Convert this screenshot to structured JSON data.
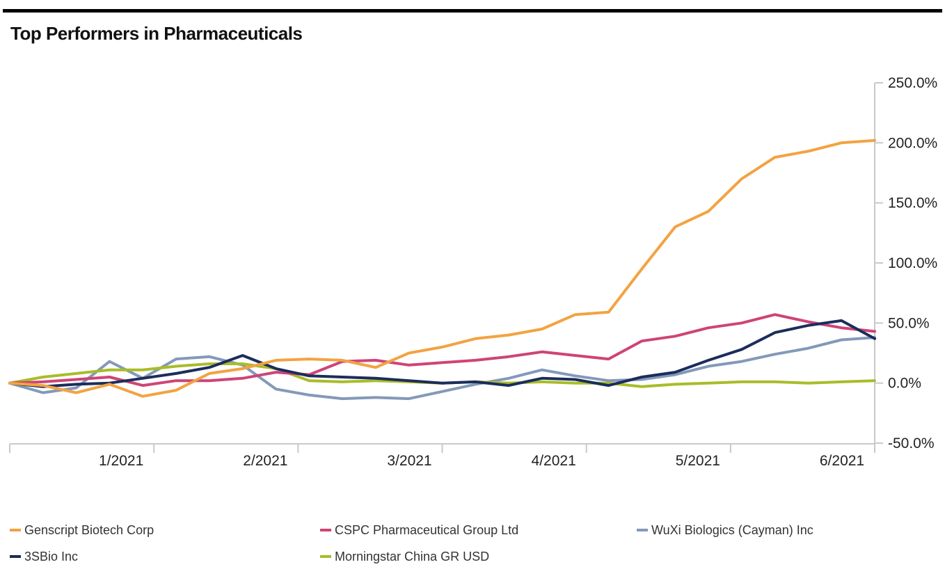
{
  "chart_data": {
    "type": "line",
    "title": "Top Performers in Pharmaceuticals",
    "x_tick_labels": [
      "1/2021",
      "2/2021",
      "3/2021",
      "4/2021",
      "5/2021",
      "6/2021"
    ],
    "y_tick_labels": [
      "250.0%",
      "200.0%",
      "150.0%",
      "100.0%",
      "50.0%",
      "0.0%",
      "-50.0%"
    ],
    "ylim": [
      -50,
      250
    ],
    "y_tick_step": 50,
    "y_axis_side": "right",
    "legend_position": "bottom",
    "grid": false,
    "series": [
      {
        "name": "Genscript Biotech Corp",
        "color": "#F2A341",
        "values": [
          0,
          -2,
          -8,
          -1,
          -11,
          -6,
          8,
          12,
          19,
          20,
          19,
          13,
          25,
          30,
          37,
          40,
          45,
          57,
          59,
          95,
          130,
          143,
          170,
          188,
          193,
          200,
          202
        ]
      },
      {
        "name": "CSPC Pharmaceutical Group Ltd",
        "color": "#CE4477",
        "values": [
          0,
          1,
          3,
          5,
          -2,
          2,
          2,
          4,
          9,
          7,
          18,
          19,
          15,
          17,
          19,
          22,
          26,
          23,
          20,
          35,
          39,
          46,
          50,
          57,
          51,
          46,
          43
        ]
      },
      {
        "name": "WuXi Biologics (Cayman) Inc",
        "color": "#8499B9",
        "values": [
          0,
          -8,
          -4,
          18,
          4,
          20,
          22,
          15,
          -5,
          -10,
          -13,
          -12,
          -13,
          -7,
          -1,
          4,
          11,
          6,
          2,
          3,
          7,
          14,
          18,
          24,
          29,
          36,
          38
        ]
      },
      {
        "name": "3SBio Inc",
        "color": "#1B2D5B",
        "values": [
          0,
          -3,
          -1,
          0,
          4,
          8,
          13,
          23,
          12,
          6,
          5,
          4,
          2,
          0,
          1,
          -2,
          4,
          3,
          -2,
          5,
          9,
          19,
          28,
          42,
          48,
          52,
          37
        ]
      },
      {
        "name": "Morningstar China GR USD",
        "color": "#A9BC29",
        "values": [
          0,
          5,
          8,
          11,
          11,
          14,
          16,
          16,
          12,
          2,
          1,
          2,
          1,
          0,
          1,
          0,
          1,
          0,
          0,
          -3,
          -1,
          0,
          1,
          1,
          0,
          1,
          2
        ]
      }
    ]
  },
  "colors": {
    "axis": "#C9C9C9",
    "tick_text": "#222222",
    "title_text": "#111111",
    "top_rule": "#000000",
    "legend_text": "#333333",
    "background": "#FFFFFF"
  }
}
